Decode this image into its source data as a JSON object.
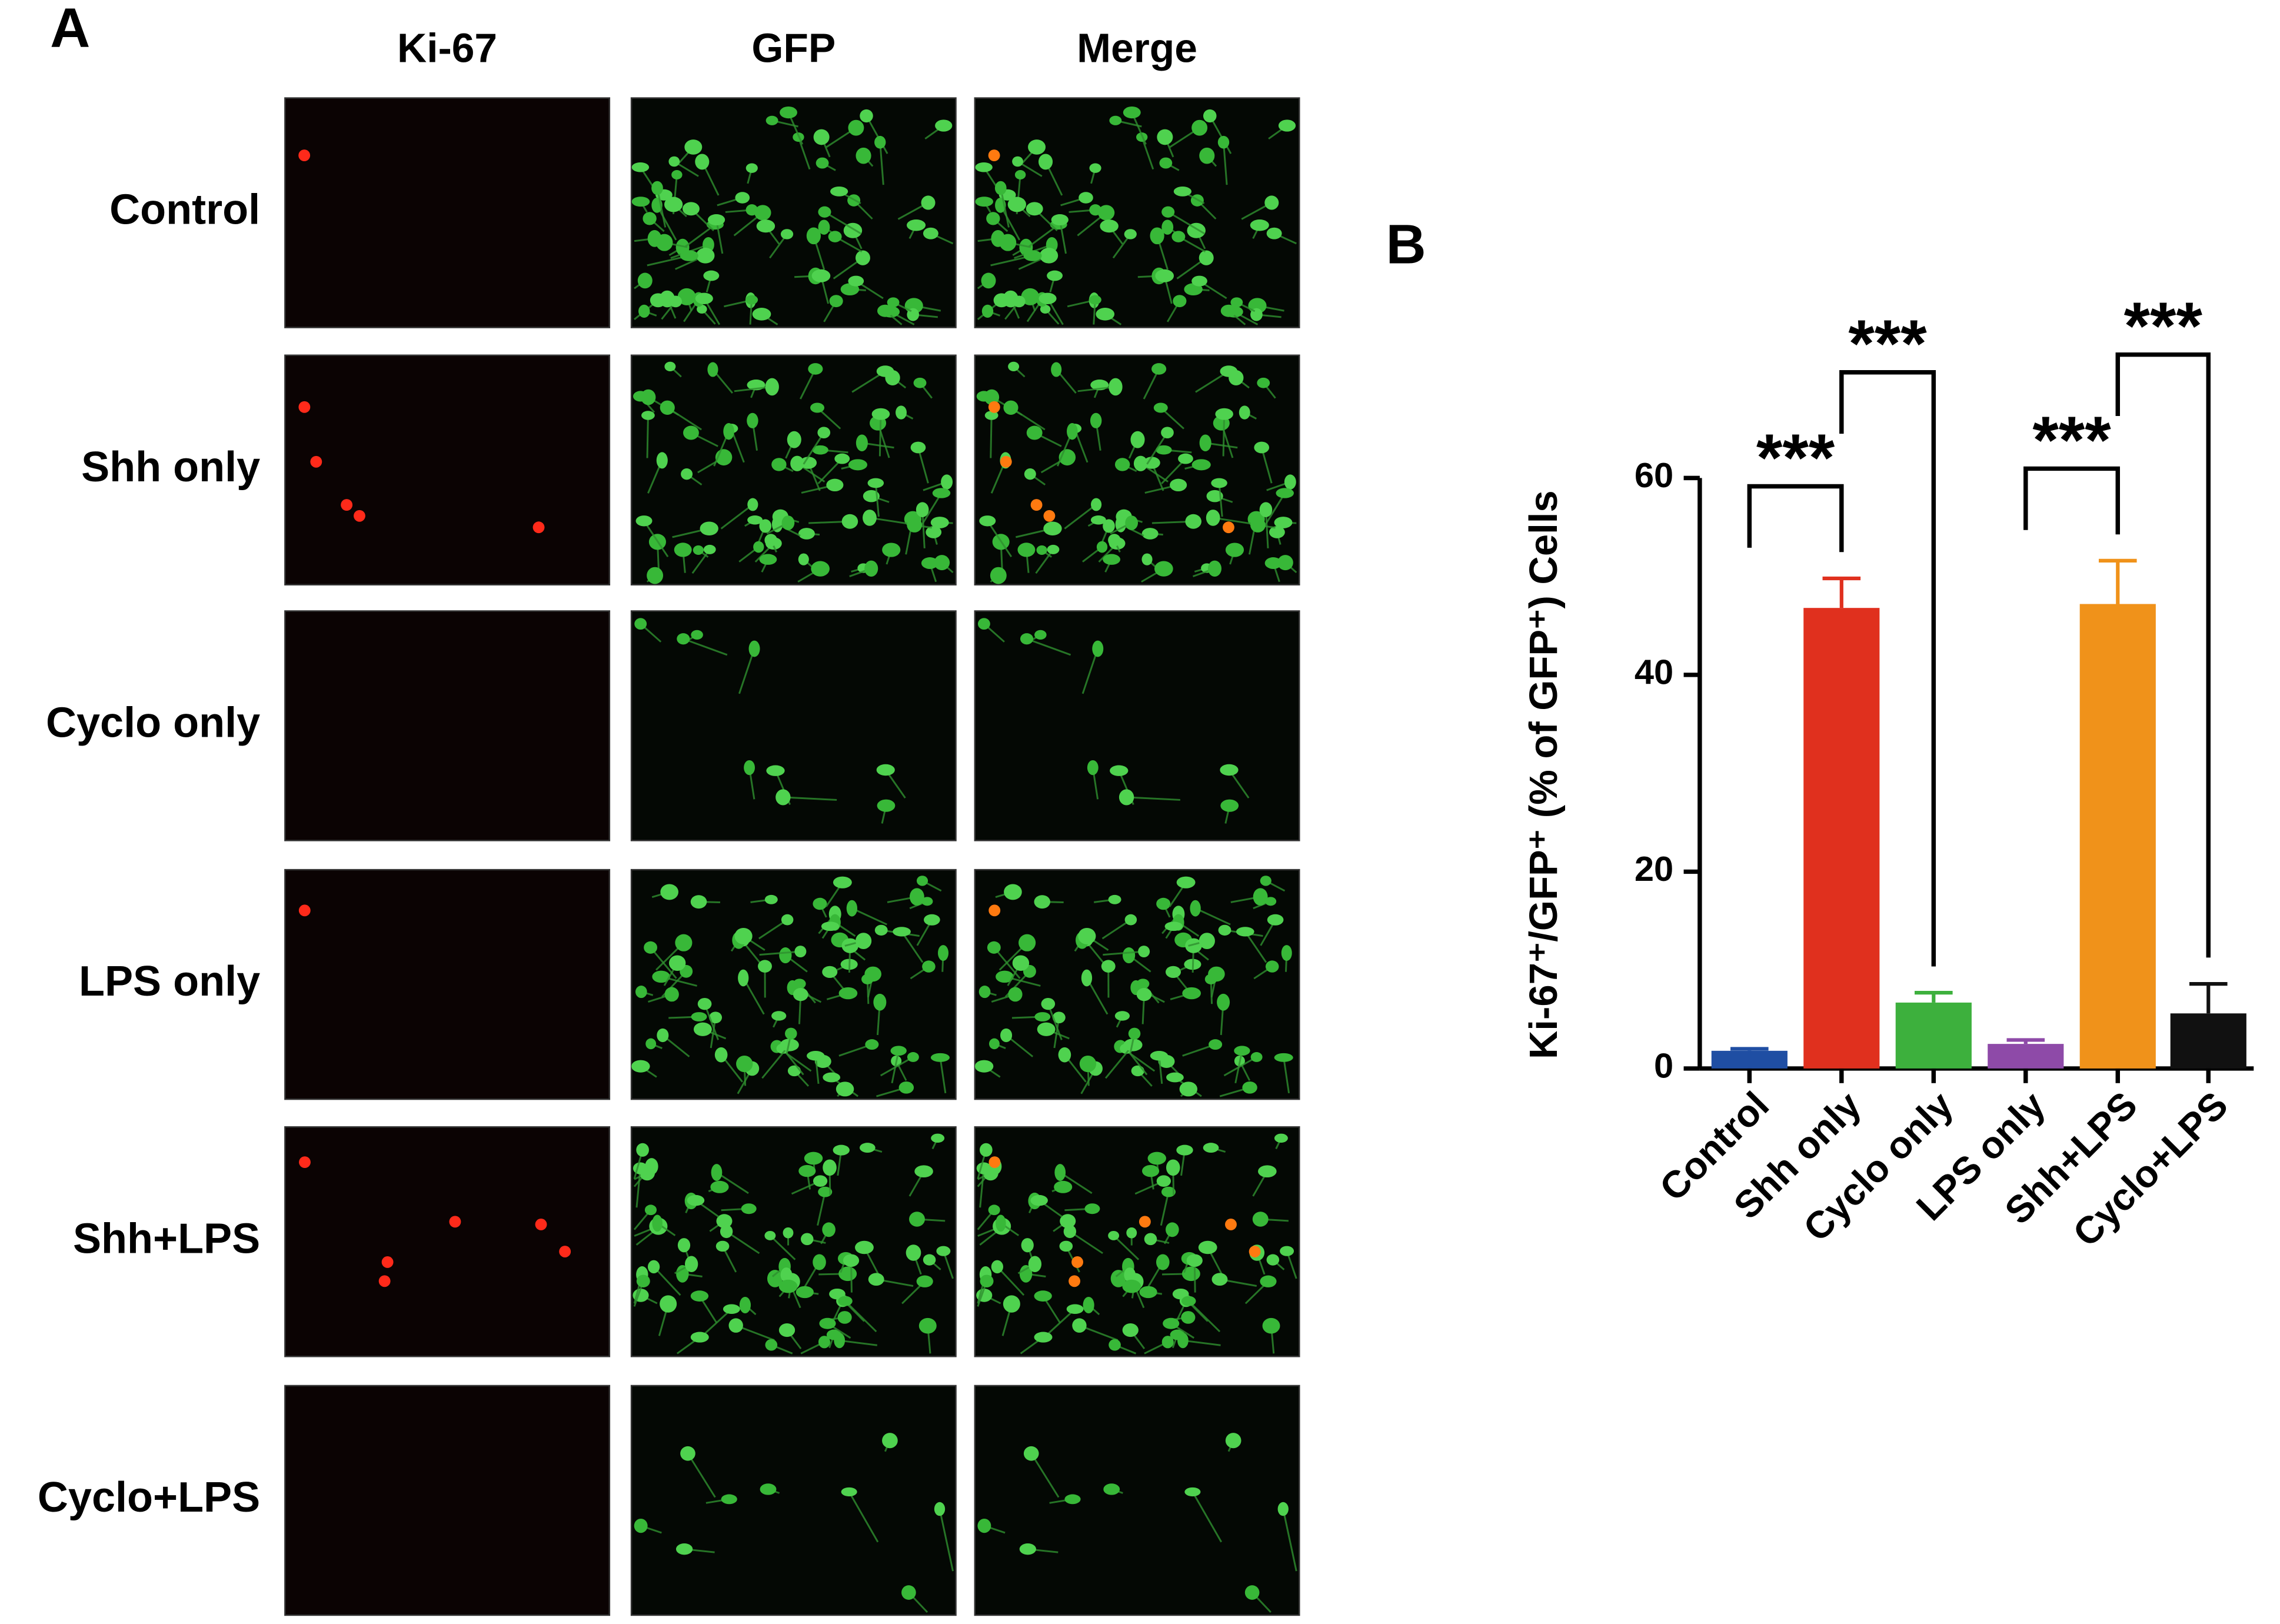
{
  "panel_a": {
    "label": "A",
    "columns": [
      "Ki-67",
      "GFP",
      "Merge"
    ],
    "rows": [
      "Control",
      "Shh only",
      "Cyclo only",
      "LPS only",
      "Shh+LPS",
      "Cyclo+LPS"
    ]
  },
  "chart_data": {
    "type": "bar",
    "panel_label": "B",
    "y_label": "Ki-67⁺/GFP⁺ (% of GFP⁺) Cells",
    "categories": [
      "Control",
      "Shh only",
      "Cyclo only",
      "LPS only",
      "Shh+LPS",
      "Cyclo+LPS"
    ],
    "values": [
      1.8,
      46.8,
      6.7,
      2.5,
      47.2,
      5.6
    ],
    "errors": [
      0.2,
      3.0,
      1.0,
      0.4,
      4.4,
      3.0
    ],
    "colors": [
      "#1f4ea3",
      "#e0301e",
      "#3db03d",
      "#8e4aa8",
      "#f0921a",
      "#111111"
    ],
    "ylim": [
      0,
      60
    ],
    "yticks": [
      0,
      20,
      40,
      60
    ],
    "significance": [
      {
        "groups": [
          0,
          1
        ],
        "label": "***"
      },
      {
        "groups": [
          1,
          2
        ],
        "label": "***"
      },
      {
        "groups": [
          3,
          4
        ],
        "label": "***"
      },
      {
        "groups": [
          4,
          5
        ],
        "label": "***"
      }
    ]
  }
}
